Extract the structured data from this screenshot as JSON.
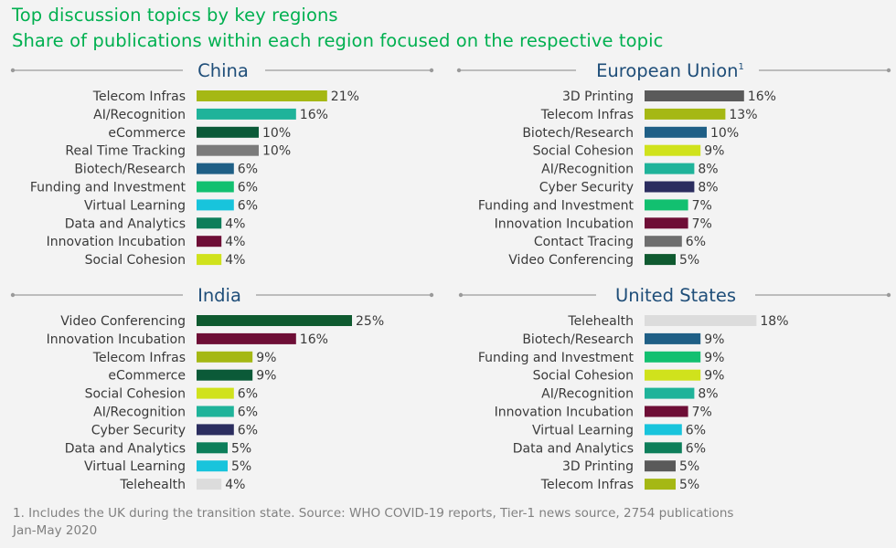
{
  "title": "Top discussion topics by key regions",
  "subtitle": "Share of publications within each region focused on the respective topic",
  "footnote": {
    "line1": "1. Includes the UK during the transition state. Source: WHO COVID-19 reports, Tier-1 news source, 2754 publications",
    "line2": "Jan-May 2020"
  },
  "topic_colors": {
    "Telecom Infras": "#a5b814",
    "AI/Recognition": "#1fb39a",
    "eCommerce": "#0b5a38",
    "Real Time Tracking": "#7b7b7b",
    "Biotech/Research": "#1f5f86",
    "Funding and Investment": "#12c070",
    "Virtual Learning": "#18c4dc",
    "Data and Analytics": "#0d7e5a",
    "Innovation Incubation": "#6e0e36",
    "Social Cohesion": "#d0e21c",
    "3D Printing": "#5a5a5a",
    "Cyber Security": "#2b2d5f",
    "Contact Tracing": "#6e6e6e",
    "Video Conferencing": "#0f5a30",
    "Telehealth": "#dcdcdc"
  },
  "chart_data": [
    {
      "type": "bar",
      "orientation": "horizontal",
      "title": "China",
      "categories": [
        "Telecom Infras",
        "AI/Recognition",
        "eCommerce",
        "Real Time Tracking",
        "Biotech/Research",
        "Funding and Investment",
        "Virtual Learning",
        "Data and Analytics",
        "Innovation Incubation",
        "Social Cohesion"
      ],
      "values": [
        21,
        16,
        10,
        10,
        6,
        6,
        6,
        4,
        4,
        4
      ],
      "value_labels": [
        "21%",
        "16%",
        "10%",
        "10%",
        "6%",
        "6%",
        "6%",
        "4%",
        "4%",
        "4%"
      ],
      "unit": "%"
    },
    {
      "type": "bar",
      "orientation": "horizontal",
      "title": "European Union",
      "title_superscript": "1",
      "categories": [
        "3D Printing",
        "Telecom Infras",
        "Biotech/Research",
        "Social Cohesion",
        "AI/Recognition",
        "Cyber Security",
        "Funding and Investment",
        "Innovation Incubation",
        "Contact Tracing",
        "Video Conferencing"
      ],
      "values": [
        16,
        13,
        10,
        9,
        8,
        8,
        7,
        7,
        6,
        5
      ],
      "value_labels": [
        "16%",
        "13%",
        "10%",
        "9%",
        "8%",
        "8%",
        "7%",
        "7%",
        "6%",
        "5%"
      ],
      "unit": "%"
    },
    {
      "type": "bar",
      "orientation": "horizontal",
      "title": "India",
      "categories": [
        "Video Conferencing",
        "Innovation Incubation",
        "Telecom Infras",
        "eCommerce",
        "Social Cohesion",
        "AI/Recognition",
        "Cyber Security",
        "Data and Analytics",
        "Virtual Learning",
        "Telehealth"
      ],
      "values": [
        25,
        16,
        9,
        9,
        6,
        6,
        6,
        5,
        5,
        4
      ],
      "value_labels": [
        "25%",
        "16%",
        "9%",
        "9%",
        "6%",
        "6%",
        "6%",
        "5%",
        "5%",
        "4%"
      ],
      "unit": "%"
    },
    {
      "type": "bar",
      "orientation": "horizontal",
      "title": "United States",
      "categories": [
        "Telehealth",
        "Biotech/Research",
        "Funding and Investment",
        "Social Cohesion",
        "AI/Recognition",
        "Innovation Incubation",
        "Virtual Learning",
        "Data and Analytics",
        "3D Printing",
        "Telecom Infras"
      ],
      "values": [
        18,
        9,
        9,
        9,
        8,
        7,
        6,
        6,
        5,
        5
      ],
      "value_labels": [
        "18%",
        "9%",
        "9%",
        "9%",
        "8%",
        "7%",
        "6%",
        "6%",
        "5%",
        "5%"
      ],
      "unit": "%"
    }
  ]
}
